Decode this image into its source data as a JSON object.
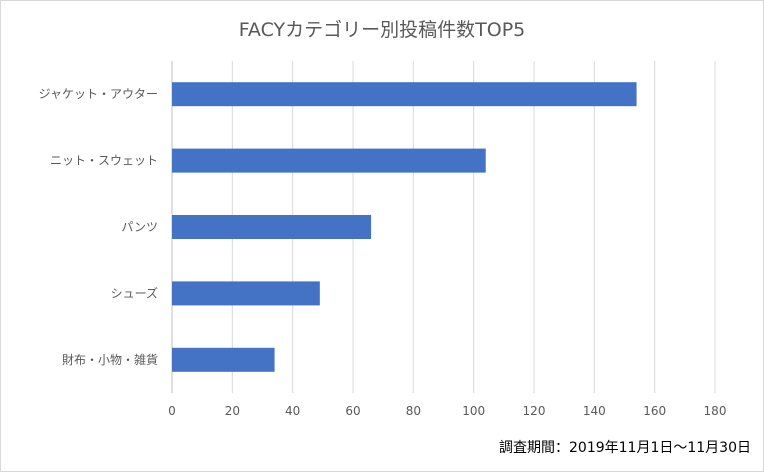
{
  "chart_data": {
    "type": "bar",
    "orientation": "horizontal",
    "title": "FACYカテゴリー別投稿件数TOP5",
    "categories": [
      "ジャケット・アウター",
      "ニット・スウェット",
      "パンツ",
      "シューズ",
      "財布・小物・雑貨"
    ],
    "values": [
      154,
      104,
      66,
      49,
      34
    ],
    "xlim": [
      0,
      180
    ],
    "x_ticks": [
      "0",
      "20",
      "40",
      "60",
      "80",
      "100",
      "120",
      "140",
      "160",
      "180"
    ],
    "grid": true,
    "legend": "none",
    "bar_color": "#4472C4"
  },
  "footnote": "調査期間：2019年11月1日〜11月30日"
}
